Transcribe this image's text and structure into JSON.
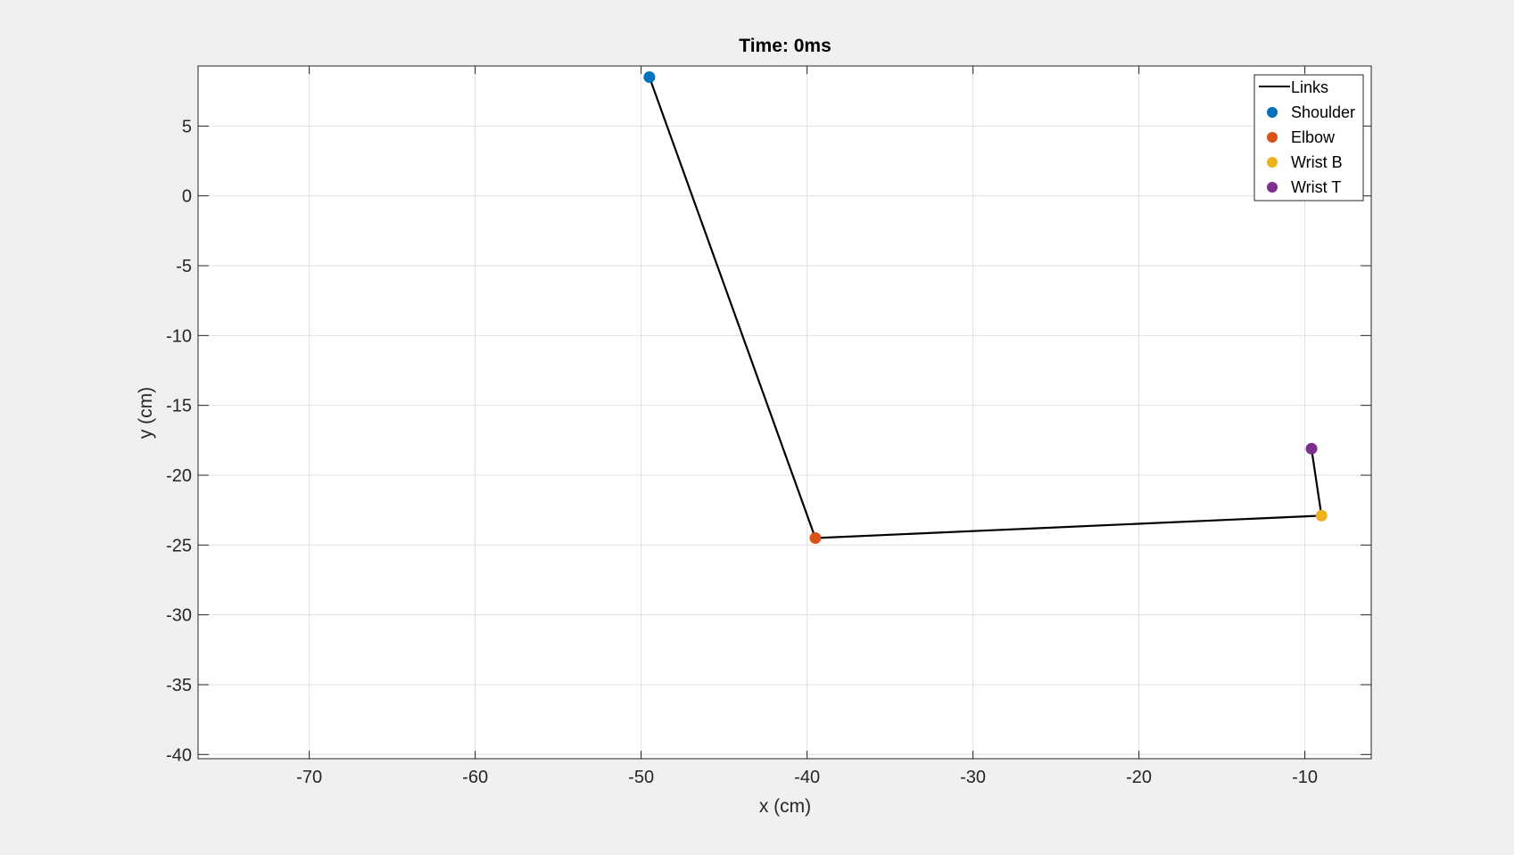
{
  "chart_data": {
    "type": "line",
    "title": "Time: 0ms",
    "xlabel": "x (cm)",
    "ylabel": "y (cm)",
    "xlim": [
      -76.7,
      -6
    ],
    "ylim": [
      -40.3,
      9.3
    ],
    "xticks": [
      -70,
      -60,
      -50,
      -40,
      -30,
      -20,
      -10
    ],
    "yticks": [
      5,
      0,
      -5,
      -10,
      -15,
      -20,
      -25,
      -30,
      -35,
      -40
    ],
    "grid": true,
    "legend_position": "top-right",
    "links": {
      "name": "Links",
      "color": "#000000",
      "x": [
        -49.5,
        -39.5,
        -9,
        -9.6
      ],
      "y": [
        8.5,
        -24.5,
        -22.9,
        -18.1
      ]
    },
    "points": [
      {
        "name": "Shoulder",
        "x": -49.5,
        "y": 8.5,
        "color": "#0072BD"
      },
      {
        "name": "Elbow",
        "x": -39.5,
        "y": -24.5,
        "color": "#D95319"
      },
      {
        "name": "Wrist B",
        "x": -9,
        "y": -22.9,
        "color": "#EDB120"
      },
      {
        "name": "Wrist T",
        "x": -9.6,
        "y": -18.1,
        "color": "#7E2F8E"
      }
    ]
  }
}
